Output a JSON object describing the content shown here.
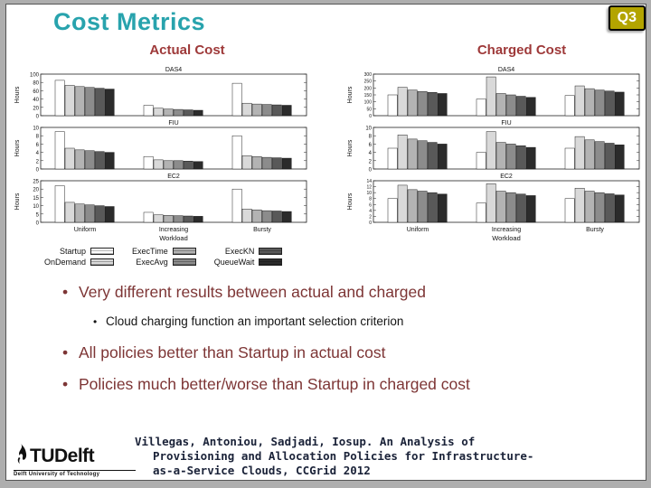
{
  "slide": {
    "title": "Cost Metrics",
    "badge": "Q3",
    "columns": {
      "actual": "Actual Cost",
      "charged": "Charged Cost"
    }
  },
  "bullets": [
    {
      "level": 1,
      "text": "Very different results between actual and charged"
    },
    {
      "level": 2,
      "text": "Cloud charging function an important selection criterion"
    },
    {
      "level": 1,
      "text": "All policies better than Startup in actual cost"
    },
    {
      "level": 1,
      "text": "Policies much better/worse than Startup in charged cost"
    }
  ],
  "legend": {
    "items": [
      "Startup",
      "OnDemand",
      "ExecTime",
      "ExecAvg",
      "ExecKN",
      "QueueWait"
    ],
    "palette": [
      "#ffffff",
      "#d9d9d9",
      "#b3b3b3",
      "#8c8c8c",
      "#595959",
      "#2b2b2b"
    ]
  },
  "footer": {
    "citation_lines": [
      "Villegas, Antoniou, Sadjadi, Iosup. An Analysis of",
      "Provisioning and Allocation Policies for Infrastructure-",
      "as-a-Service Clouds, CCGrid 2012"
    ],
    "logo_text": "TUDelft",
    "logo_caption": "Delft University of Technology"
  },
  "colors": {
    "title": "#28a3ad",
    "column_heading": "#9e3939",
    "bullet_level1": "#7d3535",
    "badge_bg": "#b3a400"
  },
  "chart_data": [
    {
      "type": "bar",
      "title": "Actual Cost",
      "xlabel": "Workload",
      "ylabel": "Hours",
      "categories": [
        "Uniform",
        "Increasing",
        "Bursty"
      ],
      "legend_entries": [
        "Startup",
        "OnDemand",
        "ExecTime",
        "ExecAvg",
        "ExecKN",
        "QueueWait"
      ],
      "subplots": [
        {
          "name": "DAS4",
          "ylim": [
            0,
            100
          ],
          "yticks": [
            0,
            20,
            40,
            60,
            80,
            100
          ],
          "series": [
            {
              "name": "Startup",
              "values": [
                85,
                25,
                78
              ]
            },
            {
              "name": "OnDemand",
              "values": [
                73,
                18,
                30
              ]
            },
            {
              "name": "ExecTime",
              "values": [
                70,
                16,
                28
              ]
            },
            {
              "name": "ExecAvg",
              "values": [
                68,
                15,
                27
              ]
            },
            {
              "name": "ExecKN",
              "values": [
                66,
                14,
                26
              ]
            },
            {
              "name": "QueueWait",
              "values": [
                64,
                13,
                25
              ]
            }
          ]
        },
        {
          "name": "FIU",
          "ylim": [
            0,
            10
          ],
          "yticks": [
            0,
            2,
            4,
            6,
            8,
            10
          ],
          "series": [
            {
              "name": "Startup",
              "values": [
                9,
                3,
                8
              ]
            },
            {
              "name": "OnDemand",
              "values": [
                5,
                2.2,
                3.2
              ]
            },
            {
              "name": "ExecTime",
              "values": [
                4.6,
                2,
                3
              ]
            },
            {
              "name": "ExecAvg",
              "values": [
                4.4,
                2,
                2.8
              ]
            },
            {
              "name": "ExecKN",
              "values": [
                4.2,
                1.9,
                2.7
              ]
            },
            {
              "name": "QueueWait",
              "values": [
                4,
                1.8,
                2.6
              ]
            }
          ]
        },
        {
          "name": "EC2",
          "ylim": [
            0,
            25
          ],
          "yticks": [
            0,
            5,
            10,
            15,
            20,
            25
          ],
          "series": [
            {
              "name": "Startup",
              "values": [
                22,
                6,
                20
              ]
            },
            {
              "name": "OnDemand",
              "values": [
                12,
                4.5,
                8
              ]
            },
            {
              "name": "ExecTime",
              "values": [
                11,
                4.2,
                7.5
              ]
            },
            {
              "name": "ExecAvg",
              "values": [
                10.5,
                4,
                7
              ]
            },
            {
              "name": "ExecKN",
              "values": [
                10,
                3.8,
                6.8
              ]
            },
            {
              "name": "QueueWait",
              "values": [
                9.5,
                3.6,
                6.5
              ]
            }
          ]
        }
      ]
    },
    {
      "type": "bar",
      "title": "Charged Cost",
      "xlabel": "Workload",
      "ylabel": "Hours",
      "categories": [
        "Uniform",
        "Increasing",
        "Bursty"
      ],
      "legend_entries": [
        "Startup",
        "OnDemand",
        "ExecTime",
        "ExecAvg",
        "ExecKN",
        "QueueWait"
      ],
      "subplots": [
        {
          "name": "DAS4",
          "ylim": [
            0,
            300
          ],
          "yticks": [
            0,
            50,
            100,
            150,
            200,
            250,
            300
          ],
          "series": [
            {
              "name": "Startup",
              "values": [
                150,
                120,
                145
              ]
            },
            {
              "name": "OnDemand",
              "values": [
                205,
                280,
                215
              ]
            },
            {
              "name": "ExecTime",
              "values": [
                185,
                160,
                195
              ]
            },
            {
              "name": "ExecAvg",
              "values": [
                175,
                150,
                185
              ]
            },
            {
              "name": "ExecKN",
              "values": [
                168,
                140,
                178
              ]
            },
            {
              "name": "QueueWait",
              "values": [
                160,
                132,
                170
              ]
            }
          ]
        },
        {
          "name": "FIU",
          "ylim": [
            0,
            10
          ],
          "yticks": [
            0,
            2,
            4,
            6,
            8,
            10
          ],
          "series": [
            {
              "name": "Startup",
              "values": [
                5,
                4,
                5
              ]
            },
            {
              "name": "OnDemand",
              "values": [
                8.2,
                9,
                7.8
              ]
            },
            {
              "name": "ExecTime",
              "values": [
                7.2,
                6.4,
                7
              ]
            },
            {
              "name": "ExecAvg",
              "values": [
                6.8,
                6,
                6.6
              ]
            },
            {
              "name": "ExecKN",
              "values": [
                6.4,
                5.6,
                6.2
              ]
            },
            {
              "name": "QueueWait",
              "values": [
                6,
                5.2,
                5.8
              ]
            }
          ]
        },
        {
          "name": "EC2",
          "ylim": [
            0,
            14
          ],
          "yticks": [
            0,
            2,
            4,
            6,
            8,
            10,
            12,
            14
          ],
          "series": [
            {
              "name": "Startup",
              "values": [
                8,
                6.5,
                8
              ]
            },
            {
              "name": "OnDemand",
              "values": [
                12.5,
                13,
                11.5
              ]
            },
            {
              "name": "ExecTime",
              "values": [
                11,
                10.5,
                10.5
              ]
            },
            {
              "name": "ExecAvg",
              "values": [
                10.5,
                10,
                10
              ]
            },
            {
              "name": "ExecKN",
              "values": [
                10,
                9.5,
                9.6
              ]
            },
            {
              "name": "QueueWait",
              "values": [
                9.5,
                9,
                9.2
              ]
            }
          ]
        }
      ]
    }
  ]
}
